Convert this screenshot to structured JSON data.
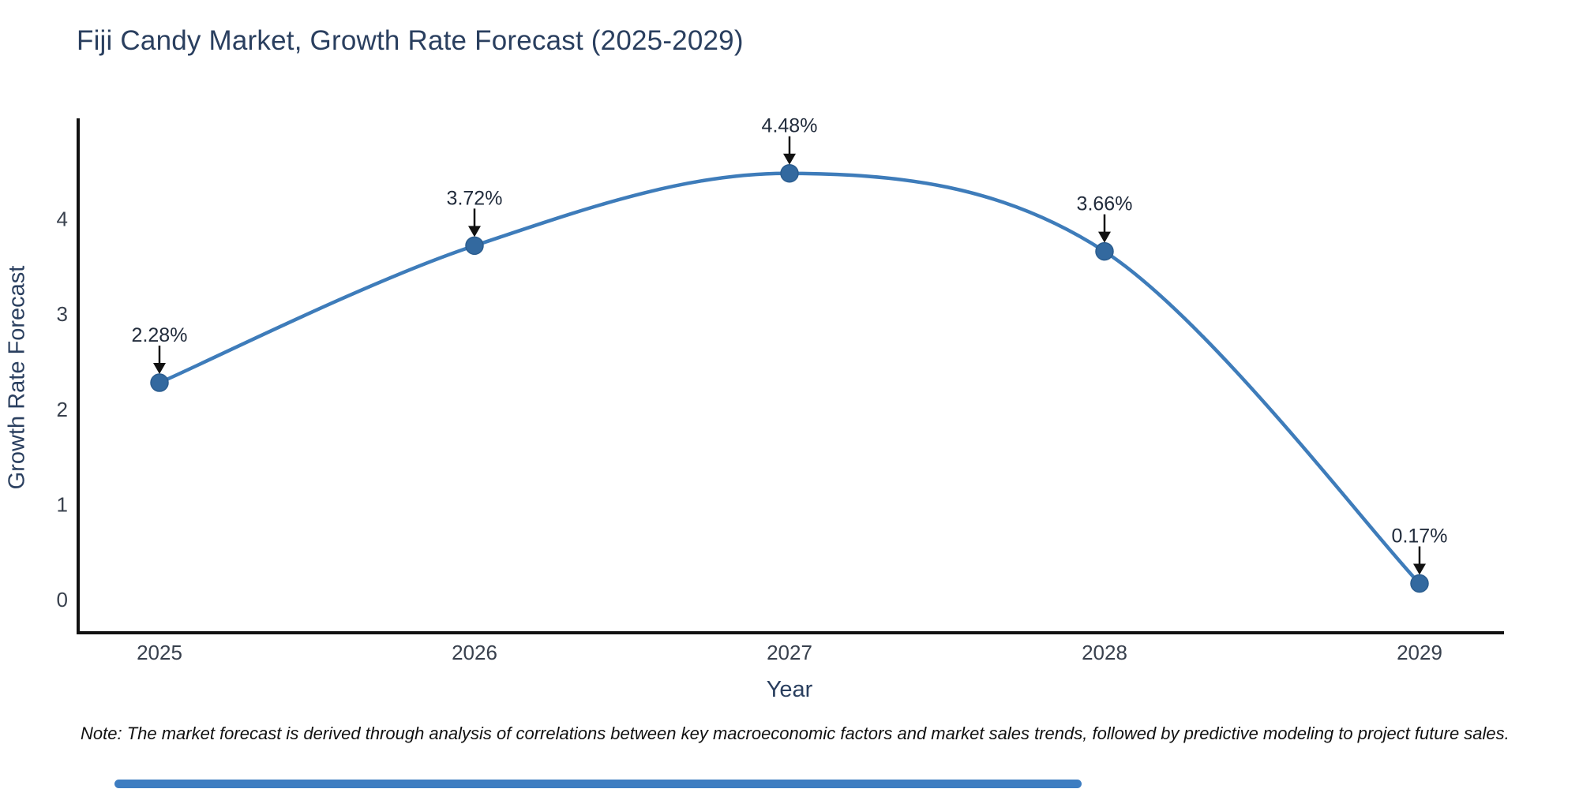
{
  "chart_data": {
    "type": "line",
    "title": "Fiji Candy Market, Growth Rate Forecast (2025-2029)",
    "x": [
      "2025",
      "2026",
      "2027",
      "2028",
      "2029"
    ],
    "values": [
      2.28,
      3.72,
      4.48,
      3.66,
      0.17
    ],
    "point_labels": [
      "2.28%",
      "3.72%",
      "4.48%",
      "3.66%",
      "0.17%"
    ],
    "xlabel": "Year",
    "ylabel": "Growth Rate Forecast",
    "yticks": [
      0,
      1,
      2,
      3,
      4
    ],
    "ylim": [
      -0.35,
      5.05
    ],
    "grid": false,
    "legend": "none",
    "smooth": true,
    "annotations": "arrow-down-to-point",
    "note": "Note: The market forecast is derived through analysis of correlations between key macroeconomic factors and market sales trends, followed by predictive modeling to project future sales."
  },
  "colors": {
    "background": "#ffffff",
    "line": "#3e7cba",
    "marker": "#33699f",
    "marker_edge": "#2b5d8f",
    "axis": "#111111",
    "title": "#2a3f5f",
    "axis_label": "#2a3f5f",
    "tick": "#38404d",
    "annotation": "#222c3c",
    "arrow": "#111111",
    "note": "#111111",
    "scrollbar": "#3d7dc1"
  }
}
